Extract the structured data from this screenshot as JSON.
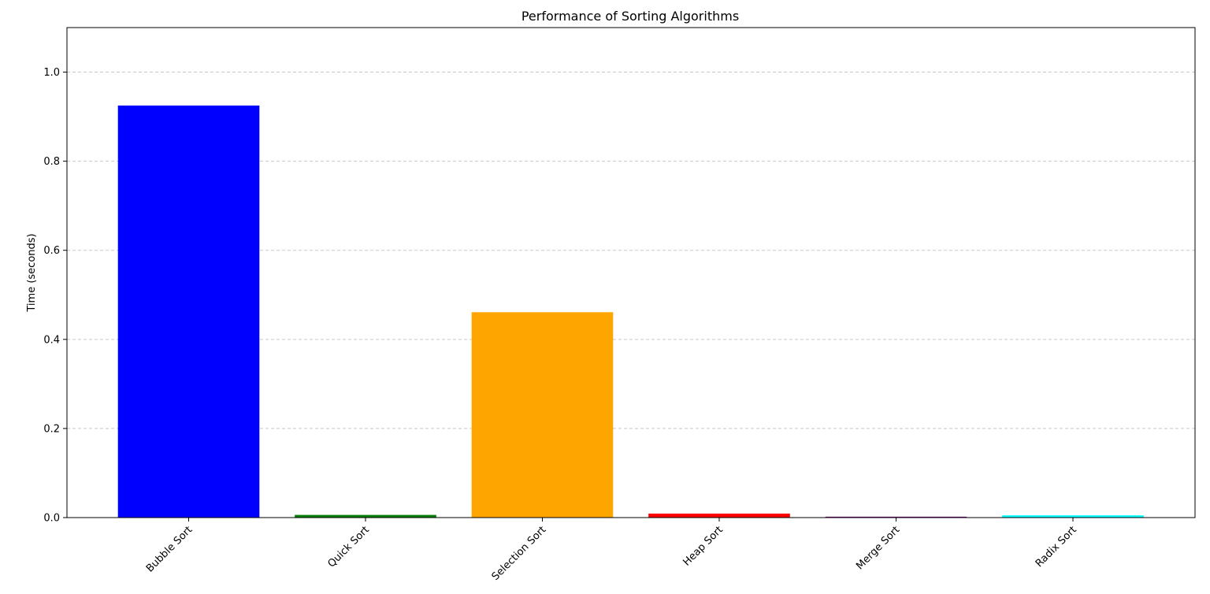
{
  "chart_data": {
    "type": "bar",
    "title": "Performance of Sorting Algorithms",
    "xlabel": "",
    "ylabel": "Time (seconds)",
    "categories": [
      "Bubble Sort",
      "Quick Sort",
      "Selection Sort",
      "Heap Sort",
      "Merge Sort",
      "Radix Sort"
    ],
    "values": [
      0.925,
      0.006,
      0.461,
      0.009,
      0.002,
      0.005
    ],
    "colors": [
      "#0000ff",
      "#008000",
      "#ffa500",
      "#ff0000",
      "#800080",
      "#00ffff"
    ],
    "ylim": [
      0,
      1.1
    ],
    "yticks": [
      0.0,
      0.2,
      0.4,
      0.6,
      0.8,
      1.0
    ],
    "ytick_labels": [
      "0.0",
      "0.2",
      "0.4",
      "0.6",
      "0.8",
      "1.0"
    ],
    "grid": "y-dashed",
    "legend": "none"
  }
}
